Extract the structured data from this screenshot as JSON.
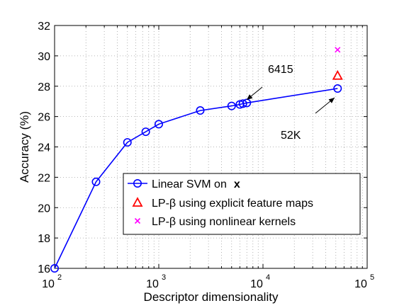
{
  "chart_data": {
    "type": "line",
    "title": "",
    "xlabel": "Descriptor dimensionality",
    "ylabel": "Accuracy (%)",
    "x_scale": "log",
    "xlim": [
      100,
      100000
    ],
    "ylim": [
      16,
      32
    ],
    "grid": true,
    "x_ticks": [
      {
        "value": 100,
        "base": "10",
        "exp": "2"
      },
      {
        "value": 1000,
        "base": "10",
        "exp": "3"
      },
      {
        "value": 10000,
        "base": "10",
        "exp": "4"
      },
      {
        "value": 100000,
        "base": "10",
        "exp": "5"
      }
    ],
    "y_ticks": [
      16,
      18,
      20,
      22,
      24,
      26,
      28,
      30,
      32
    ],
    "series": [
      {
        "name": "Linear SVM on",
        "name_math": "x",
        "color": "#0000ff",
        "marker": "circle",
        "x": [
          100,
          250,
          500,
          750,
          1000,
          2500,
          5000,
          6000,
          6415,
          7000,
          52000
        ],
        "y": [
          16.0,
          21.7,
          24.3,
          25.0,
          25.5,
          26.4,
          26.7,
          26.8,
          26.85,
          26.9,
          27.85
        ]
      },
      {
        "name": "LP-β using explicit feature maps",
        "color": "#ff0000",
        "marker": "triangle",
        "x": [
          52000
        ],
        "y": [
          28.7
        ]
      },
      {
        "name": "LP-β using nonlinear kernels",
        "color": "#ff00ff",
        "marker": "x",
        "x": [
          52000
        ],
        "y": [
          30.4
        ]
      }
    ],
    "annotations": [
      {
        "text": "6415",
        "x": 6415,
        "y": 26.85
      },
      {
        "text": "52K",
        "x": 52000,
        "y": 27.85
      }
    ],
    "legend_position": "bottom-right"
  }
}
